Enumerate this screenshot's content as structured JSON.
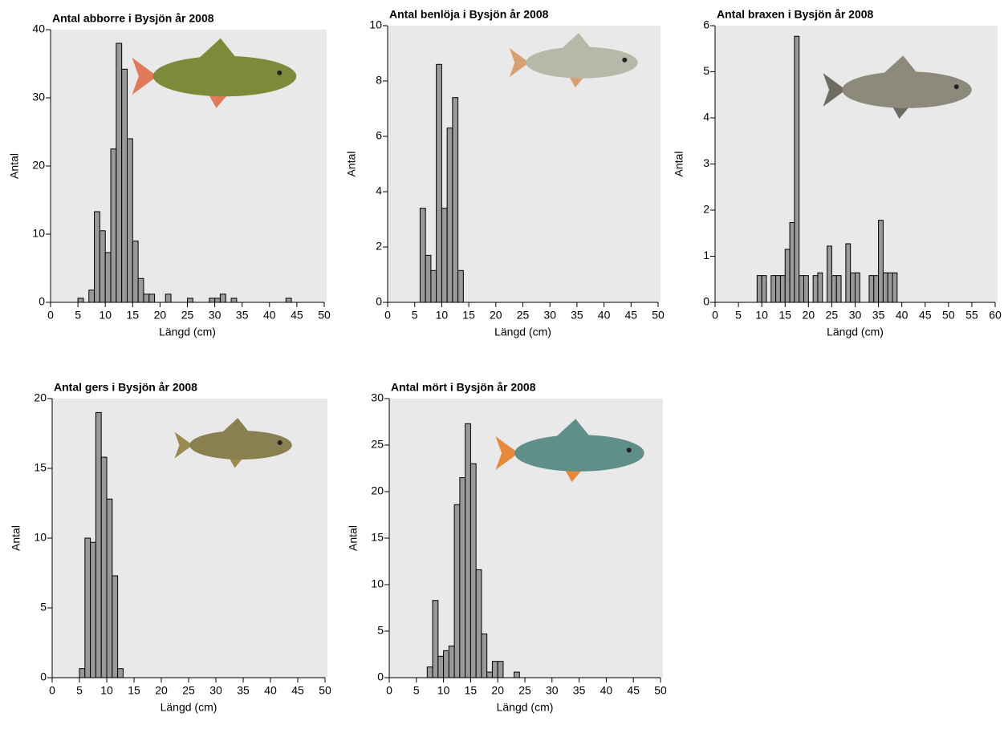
{
  "chart_data": [
    {
      "type": "histogram",
      "title": "Antal abborre i Bysjön år 2008",
      "x_label": "Längd (cm)",
      "y_label": "Antal",
      "bins": [
        5,
        6,
        7,
        8,
        9,
        10,
        11,
        12,
        13,
        14,
        15,
        16,
        17,
        18,
        19,
        20,
        21,
        22,
        23,
        24,
        25,
        26,
        27,
        28,
        29,
        30,
        31,
        32,
        33,
        34,
        35,
        36,
        37,
        38,
        39,
        40,
        41,
        42,
        43,
        44
      ],
      "values": [
        0.6,
        0,
        1.8,
        13.3,
        10.5,
        7.3,
        22.5,
        38,
        34.2,
        24,
        9,
        3.5,
        1.2,
        1.2,
        0,
        0,
        1.2,
        0,
        0,
        0,
        0.6,
        0,
        0,
        0,
        0.6,
        0.6,
        1.2,
        0,
        0.6,
        0,
        0,
        0,
        0,
        0,
        0,
        0,
        0,
        0,
        0.6
      ],
      "color": "#999999",
      "xlim": [
        0,
        50
      ],
      "xticks": [
        0,
        5,
        10,
        15,
        20,
        25,
        30,
        35,
        40,
        45,
        50
      ],
      "ylim": [
        0,
        40
      ],
      "yticks": [
        0,
        10,
        20,
        30,
        40
      ]
    },
    {
      "type": "histogram",
      "title": "Antal benlöja i Bysjön år 2008",
      "x_label": "Längd (cm)",
      "y_label": "Antal",
      "bins": [
        6,
        7,
        8,
        9,
        10,
        11,
        12,
        13,
        14
      ],
      "values": [
        3.4,
        1.7,
        1.15,
        8.6,
        3.4,
        6.3,
        7.4,
        1.15
      ],
      "color": "#999999",
      "xlim": [
        0,
        50
      ],
      "xticks": [
        0,
        5,
        10,
        15,
        20,
        25,
        30,
        35,
        40,
        45,
        50
      ],
      "ylim": [
        0,
        10
      ],
      "yticks": [
        0,
        2,
        4,
        6,
        8,
        10
      ]
    },
    {
      "type": "histogram",
      "title": "Antal braxen i Bysjön år 2008",
      "x_label": "Längd (cm)",
      "y_label": "Antal",
      "bins": [
        9,
        10,
        11,
        12,
        13,
        14,
        15,
        16,
        17,
        18,
        19,
        20,
        21,
        22,
        23,
        24,
        25,
        26,
        27,
        28,
        29,
        30,
        31,
        32,
        33,
        34,
        35,
        36,
        37,
        38,
        39
      ],
      "values": [
        0.58,
        0.58,
        0,
        0.58,
        0.58,
        0.58,
        1.15,
        1.73,
        5.77,
        0.58,
        0.58,
        0,
        0.58,
        0.64,
        0,
        1.22,
        0.58,
        0.58,
        0,
        1.27,
        0.64,
        0.64,
        0,
        0,
        0.58,
        0.58,
        1.78,
        0.64,
        0.64,
        0.64
      ],
      "color": "#999999",
      "xlim": [
        0,
        60
      ],
      "xticks": [
        0,
        5,
        10,
        15,
        20,
        25,
        30,
        35,
        40,
        45,
        50,
        55,
        60
      ],
      "ylim": [
        0,
        6
      ],
      "yticks": [
        0,
        1,
        2,
        3,
        4,
        5,
        6
      ]
    },
    {
      "type": "histogram",
      "title": "Antal gers i Bysjön år 2008",
      "x_label": "Längd (cm)",
      "y_label": "Antal",
      "bins": [
        5,
        6,
        7,
        8,
        9,
        10,
        11,
        12,
        13
      ],
      "values": [
        0.65,
        10,
        9.7,
        19,
        15.8,
        12.8,
        7.3,
        0.65
      ],
      "color": "#999999",
      "xlim": [
        0,
        50
      ],
      "xticks": [
        0,
        5,
        10,
        15,
        20,
        25,
        30,
        35,
        40,
        45,
        50
      ],
      "ylim": [
        0,
        20
      ],
      "yticks": [
        0,
        5,
        10,
        15,
        20
      ]
    },
    {
      "type": "histogram",
      "title": "Antal mört i Bysjön år 2008",
      "x_label": "Längd (cm)",
      "y_label": "Antal",
      "bins": [
        7,
        8,
        9,
        10,
        11,
        12,
        13,
        14,
        15,
        16,
        17,
        18,
        19,
        20,
        21,
        22,
        23,
        24
      ],
      "values": [
        1.15,
        8.3,
        2.3,
        2.9,
        3.4,
        18.6,
        21.5,
        27.3,
        23,
        11.6,
        4.7,
        0.6,
        1.75,
        1.75,
        0,
        0,
        0.6
      ],
      "color": "#999999",
      "xlim": [
        0,
        50
      ],
      "xticks": [
        0,
        5,
        10,
        15,
        20,
        25,
        30,
        35,
        40,
        45,
        50
      ],
      "ylim": [
        0,
        30
      ],
      "yticks": [
        0,
        5,
        10,
        15,
        20,
        25,
        30
      ]
    }
  ]
}
